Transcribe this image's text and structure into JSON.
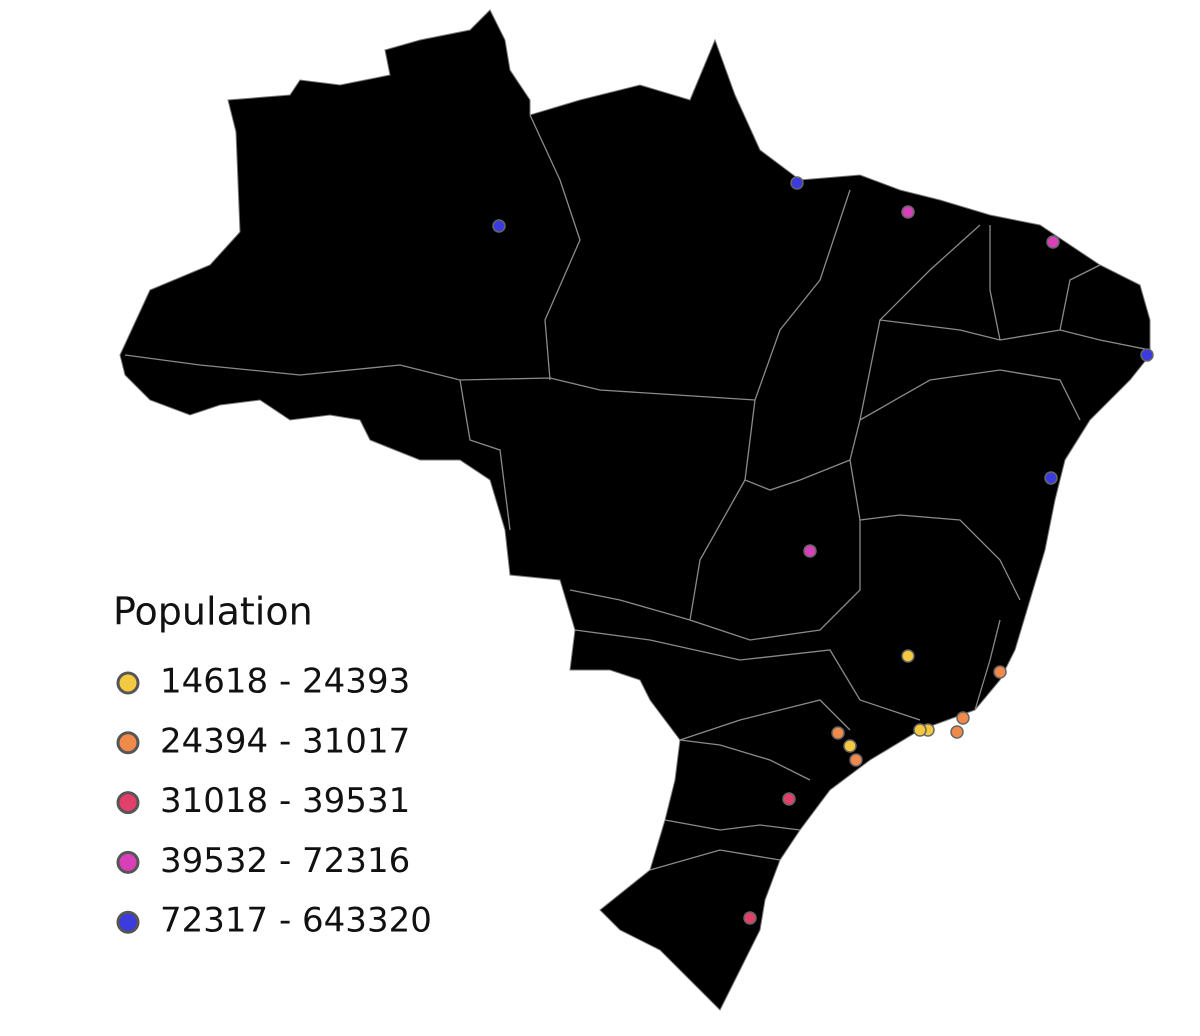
{
  "legend": {
    "title": "Population",
    "items": [
      {
        "label": "14618 - 24393",
        "color": "#f5c842"
      },
      {
        "label": "24394 - 31017",
        "color": "#f08a4b"
      },
      {
        "label": "31018 - 39531",
        "color": "#e0406a"
      },
      {
        "label": "39532 - 72316",
        "color": "#d93fb8"
      },
      {
        "label": "72317 - 643320",
        "color": "#3b3be0"
      }
    ]
  }
}
